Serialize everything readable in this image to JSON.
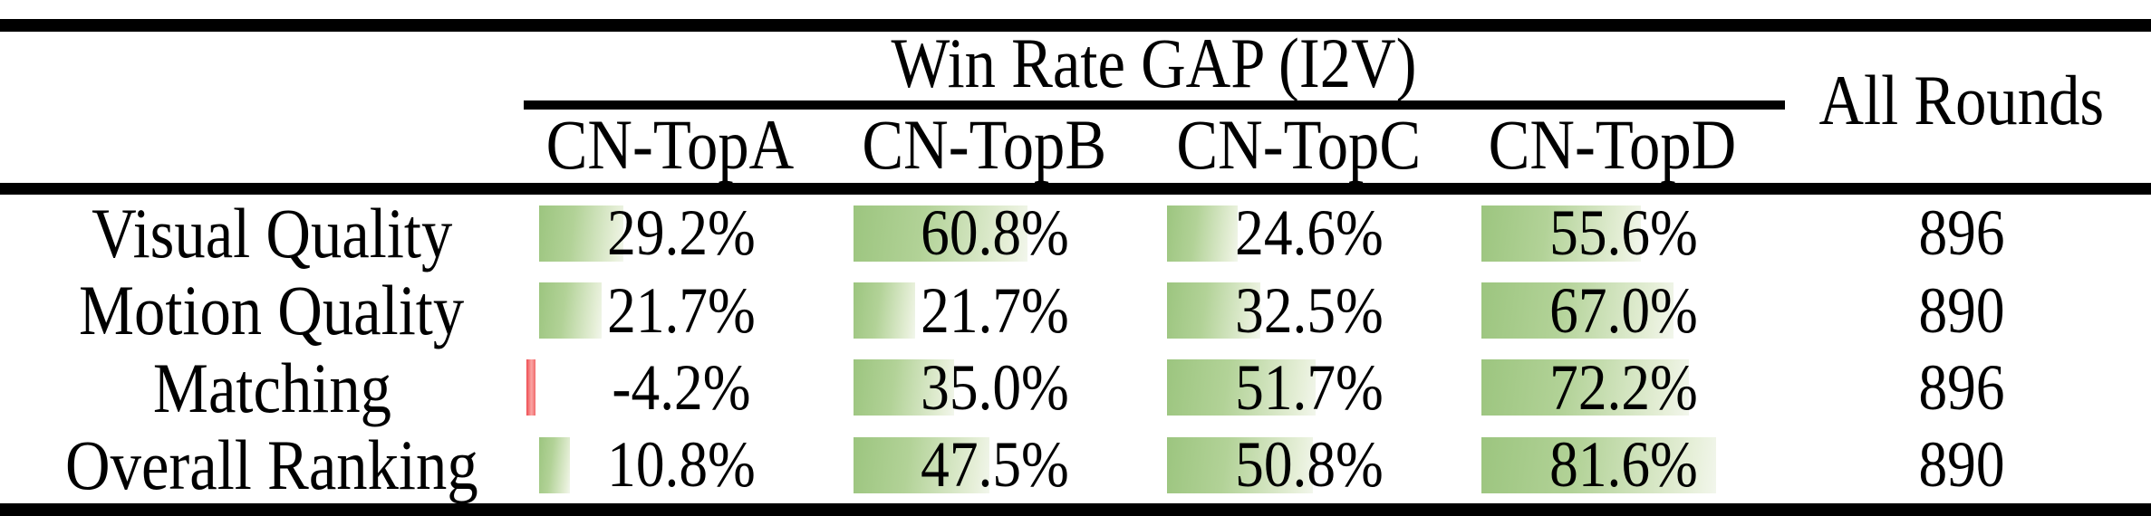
{
  "table": {
    "group_header": "Win Rate GAP (I2V)",
    "all_rounds_header": "All Rounds",
    "columns": [
      "CN-TopA",
      "CN-TopB",
      "CN-TopC",
      "CN-TopD"
    ],
    "rows": [
      {
        "label": "Visual Quality",
        "values": [
          29.2,
          60.8,
          24.6,
          55.6
        ],
        "display": [
          "29.2%",
          "60.8%",
          "24.6%",
          "55.6%"
        ],
        "all_rounds": "896"
      },
      {
        "label": "Motion Quality",
        "values": [
          21.7,
          21.7,
          32.5,
          67.0
        ],
        "display": [
          "21.7%",
          "21.7%",
          "32.5%",
          "67.0%"
        ],
        "all_rounds": "890"
      },
      {
        "label": "Matching",
        "values": [
          -4.2,
          35.0,
          51.7,
          72.2
        ],
        "display": [
          "-4.2%",
          "35.0%",
          "51.7%",
          "72.2%"
        ],
        "all_rounds": "896"
      },
      {
        "label": "Overall Ranking",
        "values": [
          10.8,
          47.5,
          50.8,
          81.6
        ],
        "display": [
          "10.8%",
          "47.5%",
          "50.8%",
          "81.6%"
        ],
        "all_rounds": "890"
      }
    ],
    "colors": {
      "bar_positive_start": "#9cc57f",
      "bar_positive_end": "#f2f6ec",
      "bar_negative": "#ee4b50",
      "rule": "#000000",
      "background": "#ffffff",
      "text": "#000000"
    }
  },
  "chart_data": {
    "type": "table",
    "title": "Win Rate GAP (I2V)",
    "columns": [
      "CN-TopA",
      "CN-TopB",
      "CN-TopC",
      "CN-TopD",
      "All Rounds"
    ],
    "row_labels": [
      "Visual Quality",
      "Motion Quality",
      "Matching",
      "Overall Ranking"
    ],
    "series": [
      {
        "name": "CN-TopA",
        "values": [
          29.2,
          21.7,
          -4.2,
          10.8
        ]
      },
      {
        "name": "CN-TopB",
        "values": [
          60.8,
          21.7,
          35.0,
          47.5
        ]
      },
      {
        "name": "CN-TopC",
        "values": [
          24.6,
          32.5,
          51.7,
          50.8
        ]
      },
      {
        "name": "CN-TopD",
        "values": [
          55.6,
          67.0,
          72.2,
          81.6
        ]
      }
    ],
    "all_rounds": [
      896,
      890,
      896,
      890
    ],
    "units": "percent",
    "bar_scale": "cell data bars proportional to value, 100% = full cell width",
    "negative_bar_color": "red",
    "positive_bar_color": "green gradient"
  }
}
